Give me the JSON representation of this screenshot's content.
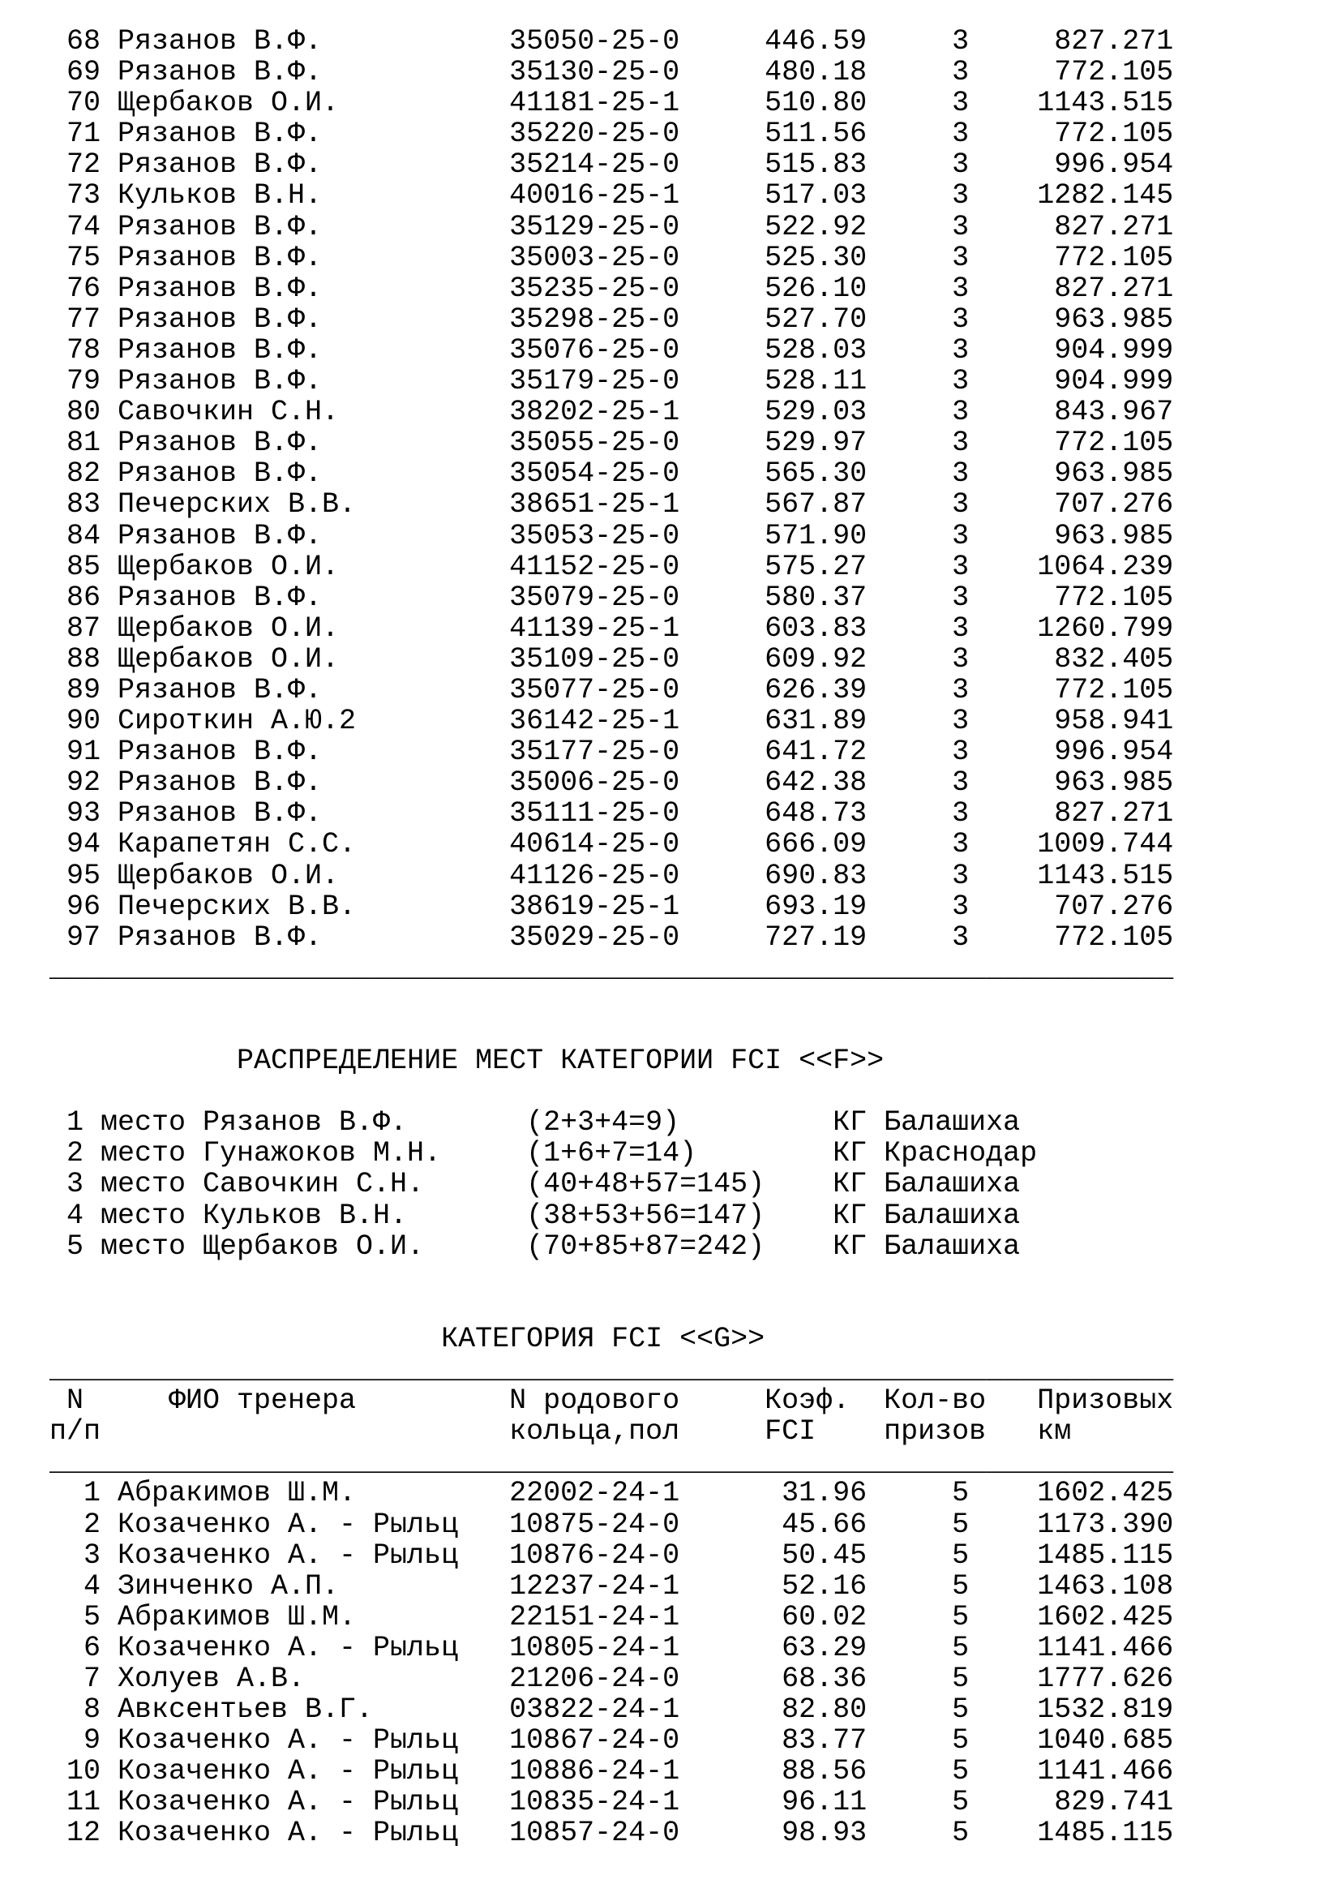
{
  "page": {
    "background": "#ffffff",
    "text_color": "#000000"
  },
  "category_f_results_table": {
    "rows": [
      {
        "num": "68",
        "trainer": "Рязанов В.Ф.",
        "ring": "35050-25-0",
        "coef": "446.59",
        "prizes": "3",
        "prize_km": "827.271"
      },
      {
        "num": "69",
        "trainer": "Рязанов В.Ф.",
        "ring": "35130-25-0",
        "coef": "480.18",
        "prizes": "3",
        "prize_km": "772.105"
      },
      {
        "num": "70",
        "trainer": "Щербаков О.И.",
        "ring": "41181-25-1",
        "coef": "510.80",
        "prizes": "3",
        "prize_km": "1143.515"
      },
      {
        "num": "71",
        "trainer": "Рязанов В.Ф.",
        "ring": "35220-25-0",
        "coef": "511.56",
        "prizes": "3",
        "prize_km": "772.105"
      },
      {
        "num": "72",
        "trainer": "Рязанов В.Ф.",
        "ring": "35214-25-0",
        "coef": "515.83",
        "prizes": "3",
        "prize_km": "996.954"
      },
      {
        "num": "73",
        "trainer": "Кульков В.Н.",
        "ring": "40016-25-1",
        "coef": "517.03",
        "prizes": "3",
        "prize_km": "1282.145"
      },
      {
        "num": "74",
        "trainer": "Рязанов В.Ф.",
        "ring": "35129-25-0",
        "coef": "522.92",
        "prizes": "3",
        "prize_km": "827.271"
      },
      {
        "num": "75",
        "trainer": "Рязанов В.Ф.",
        "ring": "35003-25-0",
        "coef": "525.30",
        "prizes": "3",
        "prize_km": "772.105"
      },
      {
        "num": "76",
        "trainer": "Рязанов В.Ф.",
        "ring": "35235-25-0",
        "coef": "526.10",
        "prizes": "3",
        "prize_km": "827.271"
      },
      {
        "num": "77",
        "trainer": "Рязанов В.Ф.",
        "ring": "35298-25-0",
        "coef": "527.70",
        "prizes": "3",
        "prize_km": "963.985"
      },
      {
        "num": "78",
        "trainer": "Рязанов В.Ф.",
        "ring": "35076-25-0",
        "coef": "528.03",
        "prizes": "3",
        "prize_km": "904.999"
      },
      {
        "num": "79",
        "trainer": "Рязанов В.Ф.",
        "ring": "35179-25-0",
        "coef": "528.11",
        "prizes": "3",
        "prize_km": "904.999"
      },
      {
        "num": "80",
        "trainer": "Савочкин С.Н.",
        "ring": "38202-25-1",
        "coef": "529.03",
        "prizes": "3",
        "prize_km": "843.967"
      },
      {
        "num": "81",
        "trainer": "Рязанов В.Ф.",
        "ring": "35055-25-0",
        "coef": "529.97",
        "prizes": "3",
        "prize_km": "772.105"
      },
      {
        "num": "82",
        "trainer": "Рязанов В.Ф.",
        "ring": "35054-25-0",
        "coef": "565.30",
        "prizes": "3",
        "prize_km": "963.985"
      },
      {
        "num": "83",
        "trainer": "Печерских В.В.",
        "ring": "38651-25-1",
        "coef": "567.87",
        "prizes": "3",
        "prize_km": "707.276"
      },
      {
        "num": "84",
        "trainer": "Рязанов В.Ф.",
        "ring": "35053-25-0",
        "coef": "571.90",
        "prizes": "3",
        "prize_km": "963.985"
      },
      {
        "num": "85",
        "trainer": "Щербаков О.И.",
        "ring": "41152-25-0",
        "coef": "575.27",
        "prizes": "3",
        "prize_km": "1064.239"
      },
      {
        "num": "86",
        "trainer": "Рязанов В.Ф.",
        "ring": "35079-25-0",
        "coef": "580.37",
        "prizes": "3",
        "prize_km": "772.105"
      },
      {
        "num": "87",
        "trainer": "Щербаков О.И.",
        "ring": "41139-25-1",
        "coef": "603.83",
        "prizes": "3",
        "prize_km": "1260.799"
      },
      {
        "num": "88",
        "trainer": "Щербаков О.И.",
        "ring": "35109-25-0",
        "coef": "609.92",
        "prizes": "3",
        "prize_km": "832.405"
      },
      {
        "num": "89",
        "trainer": "Рязанов В.Ф.",
        "ring": "35077-25-0",
        "coef": "626.39",
        "prizes": "3",
        "prize_km": "772.105"
      },
      {
        "num": "90",
        "trainer": "Сироткин А.Ю.2",
        "ring": "36142-25-1",
        "coef": "631.89",
        "prizes": "3",
        "prize_km": "958.941"
      },
      {
        "num": "91",
        "trainer": "Рязанов В.Ф.",
        "ring": "35177-25-0",
        "coef": "641.72",
        "prizes": "3",
        "prize_km": "996.954"
      },
      {
        "num": "92",
        "trainer": "Рязанов В.Ф.",
        "ring": "35006-25-0",
        "coef": "642.38",
        "prizes": "3",
        "prize_km": "963.985"
      },
      {
        "num": "93",
        "trainer": "Рязанов В.Ф.",
        "ring": "35111-25-0",
        "coef": "648.73",
        "prizes": "3",
        "prize_km": "827.271"
      },
      {
        "num": "94",
        "trainer": "Карапетян С.С.",
        "ring": "40614-25-0",
        "coef": "666.09",
        "prizes": "3",
        "prize_km": "1009.744"
      },
      {
        "num": "95",
        "trainer": "Щербаков О.И.",
        "ring": "41126-25-0",
        "coef": "690.83",
        "prizes": "3",
        "prize_km": "1143.515"
      },
      {
        "num": "96",
        "trainer": "Печерских В.В.",
        "ring": "38619-25-1",
        "coef": "693.19",
        "prizes": "3",
        "prize_km": "707.276"
      },
      {
        "num": "97",
        "trainer": "Рязанов В.Ф.",
        "ring": "35029-25-0",
        "coef": "727.19",
        "prizes": "3",
        "prize_km": "772.105"
      }
    ]
  },
  "category_f_places": {
    "title": "РАСПРЕДЕЛЕНИЕ МЕСТ КАТЕГОРИИ FCI <<F>>",
    "place_label": "место",
    "places": [
      {
        "place": "1",
        "trainer": "Рязанов В.Ф.",
        "formula": "(2+3+4=9)",
        "club": "КГ",
        "city": "Балашиха"
      },
      {
        "place": "2",
        "trainer": "Гунажоков М.Н.",
        "formula": "(1+6+7=14)",
        "club": "КГ",
        "city": "Краснодар"
      },
      {
        "place": "3",
        "trainer": "Савочкин С.Н.",
        "formula": "(40+48+57=145)",
        "club": "КГ",
        "city": "Балашиха"
      },
      {
        "place": "4",
        "trainer": "Кульков В.Н.",
        "formula": "(38+53+56=147)",
        "club": "КГ",
        "city": "Балашиха"
      },
      {
        "place": "5",
        "trainer": "Щербаков О.И.",
        "formula": "(70+85+87=242)",
        "club": "КГ",
        "city": "Балашиха"
      }
    ]
  },
  "category_g_table": {
    "title": "КАТЕГОРИЯ FCI <<G>>",
    "header": {
      "num_line1": "N",
      "num_line2": "п/п",
      "trainer": "ФИО тренера",
      "ring_line1": "N родового",
      "ring_line2": "кольца,пол",
      "coef_line1": "Коэф.",
      "coef_line2": "FCI",
      "prizes_line1": "Кол-во",
      "prizes_line2": "призов",
      "km_line1": "Призовых",
      "km_line2": "км"
    },
    "rows": [
      {
        "num": "1",
        "trainer": "Абракимов Ш.М.",
        "ring": "22002-24-1",
        "coef": "31.96",
        "prizes": "5",
        "prize_km": "1602.425"
      },
      {
        "num": "2",
        "trainer": "Козаченко А. - Рыльц",
        "ring": "10875-24-0",
        "coef": "45.66",
        "prizes": "5",
        "prize_km": "1173.390"
      },
      {
        "num": "3",
        "trainer": "Козаченко А. - Рыльц",
        "ring": "10876-24-0",
        "coef": "50.45",
        "prizes": "5",
        "prize_km": "1485.115"
      },
      {
        "num": "4",
        "trainer": "Зинченко А.П.",
        "ring": "12237-24-1",
        "coef": "52.16",
        "prizes": "5",
        "prize_km": "1463.108"
      },
      {
        "num": "5",
        "trainer": "Абракимов Ш.М.",
        "ring": "22151-24-1",
        "coef": "60.02",
        "prizes": "5",
        "prize_km": "1602.425"
      },
      {
        "num": "6",
        "trainer": "Козаченко А. - Рыльц",
        "ring": "10805-24-1",
        "coef": "63.29",
        "prizes": "5",
        "prize_km": "1141.466"
      },
      {
        "num": "7",
        "trainer": "Холуев А.В.",
        "ring": "21206-24-0",
        "coef": "68.36",
        "prizes": "5",
        "prize_km": "1777.626"
      },
      {
        "num": "8",
        "trainer": "Авксентьев В.Г.",
        "ring": "03822-24-1",
        "coef": "82.80",
        "prizes": "5",
        "prize_km": "1532.819"
      },
      {
        "num": "9",
        "trainer": "Козаченко А. - Рыльц",
        "ring": "10867-24-0",
        "coef": "83.77",
        "prizes": "5",
        "prize_km": "1040.685"
      },
      {
        "num": "10",
        "trainer": "Козаченко А. - Рыльц",
        "ring": "10886-24-1",
        "coef": "88.56",
        "prizes": "5",
        "prize_km": "1141.466"
      },
      {
        "num": "11",
        "trainer": "Козаченко А. - Рыльц",
        "ring": "10835-24-1",
        "coef": "96.11",
        "prizes": "5",
        "prize_km": "829.741"
      },
      {
        "num": "12",
        "trainer": "Козаченко А. - Рыльц",
        "ring": "10857-24-0",
        "coef": "98.93",
        "prizes": "5",
        "prize_km": "1485.115"
      }
    ]
  }
}
